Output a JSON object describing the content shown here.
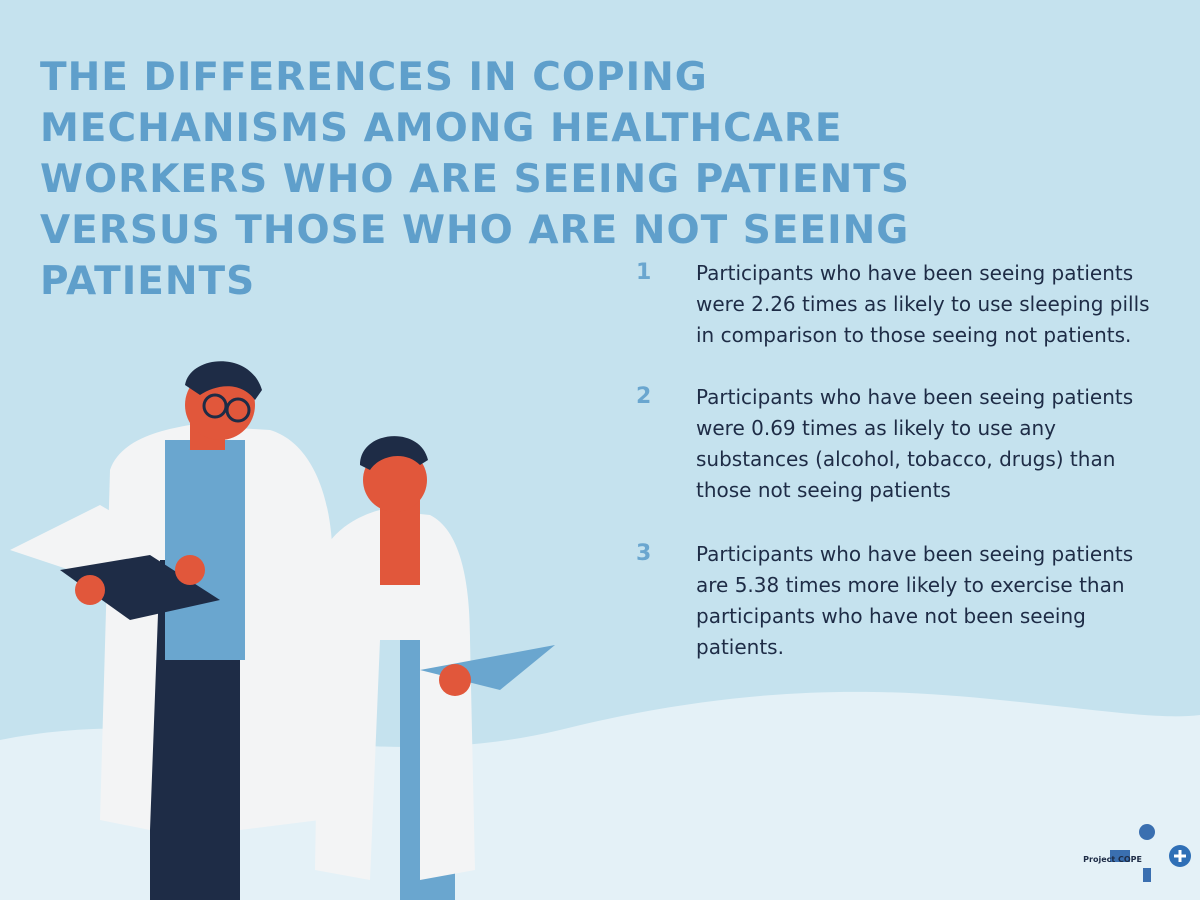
{
  "header": {
    "title": "THE DIFFERENCES IN COPING MECHANISMS AMONG HEALTHCARE WORKERS WHO ARE SEEING PATIENTS VERSUS THOSE WHO ARE NOT SEEING PATIENTS"
  },
  "items": [
    {
      "number": "1",
      "text": "Participants who have been seeing patients were 2.26 times as likely to use sleeping pills in comparison to those seeing not patients."
    },
    {
      "number": "2",
      "text": "Participants who have been seeing patients were 0.69 times as likely to use any substances (alcohol, tobacco, drugs) than those not seeing patients"
    },
    {
      "number": "3",
      "text": "Participants who have been seeing patients are 5.38 times more likely to exercise than participants who have not been seeing patients."
    }
  ],
  "logo": {
    "text": "Project COPE"
  }
}
